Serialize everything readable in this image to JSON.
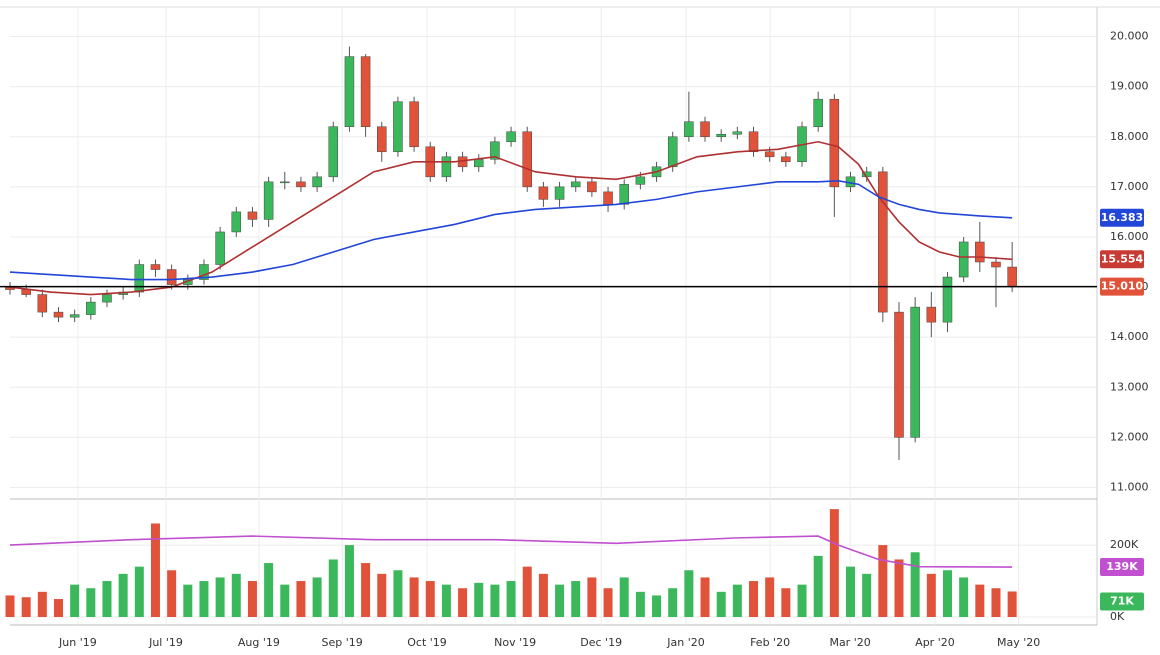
{
  "chart_data": {
    "type": "candlestick",
    "x": [
      0,
      4,
      8,
      12,
      16,
      20,
      24,
      28,
      32,
      36,
      40,
      44,
      48,
      52,
      56,
      60,
      64,
      68,
      72,
      76,
      80,
      84,
      88,
      92,
      96,
      100,
      104,
      108,
      112,
      116,
      120,
      124,
      128,
      132,
      136,
      140,
      144,
      148,
      152,
      156,
      160,
      164,
      168,
      172,
      176,
      180,
      184,
      188,
      192,
      196,
      200,
      204,
      208,
      212,
      216,
      220,
      224,
      228,
      232,
      236,
      240,
      244,
      248
    ],
    "open": [
      15.0,
      14.95,
      14.85,
      14.5,
      14.4,
      14.45,
      14.7,
      14.85,
      14.9,
      15.45,
      15.35,
      15.05,
      15.15,
      15.45,
      16.1,
      16.5,
      16.35,
      17.1,
      17.1,
      17.0,
      17.2,
      18.2,
      19.6,
      18.2,
      17.7,
      18.7,
      17.8,
      17.2,
      17.6,
      17.4,
      17.55,
      17.9,
      18.1,
      17.0,
      16.75,
      17.0,
      17.1,
      16.9,
      16.65,
      17.05,
      17.2,
      17.4,
      18.0,
      18.3,
      18.0,
      18.05,
      18.1,
      17.7,
      17.6,
      17.5,
      18.2,
      18.75,
      17.0,
      17.2,
      17.3,
      14.5,
      12.0,
      14.6,
      14.3,
      15.2,
      15.9,
      15.5,
      15.4
    ],
    "high": [
      15.1,
      15.05,
      14.95,
      14.6,
      14.55,
      14.8,
      14.95,
      15.0,
      15.55,
      15.55,
      15.45,
      15.25,
      15.55,
      16.2,
      16.6,
      16.6,
      17.2,
      17.3,
      17.2,
      17.3,
      18.3,
      19.8,
      19.65,
      18.3,
      18.8,
      18.8,
      17.9,
      17.7,
      17.7,
      17.65,
      18.0,
      18.2,
      18.2,
      17.1,
      17.1,
      17.2,
      17.2,
      17.0,
      17.15,
      17.3,
      17.5,
      18.1,
      18.9,
      18.4,
      18.15,
      18.2,
      18.2,
      17.8,
      17.7,
      18.3,
      18.9,
      18.85,
      17.3,
      17.4,
      17.4,
      14.7,
      14.8,
      14.9,
      15.3,
      16.0,
      16.3,
      15.6,
      15.9
    ],
    "low": [
      14.85,
      14.8,
      14.4,
      14.3,
      14.3,
      14.35,
      14.6,
      14.75,
      14.8,
      15.2,
      14.95,
      14.95,
      15.05,
      15.35,
      16.0,
      16.2,
      16.2,
      16.95,
      16.9,
      16.9,
      17.1,
      18.1,
      18.0,
      17.5,
      17.6,
      17.7,
      17.1,
      17.1,
      17.3,
      17.3,
      17.45,
      17.8,
      16.9,
      16.6,
      16.6,
      16.9,
      16.8,
      16.5,
      16.55,
      16.95,
      17.1,
      17.3,
      17.9,
      17.9,
      17.9,
      17.95,
      17.6,
      17.5,
      17.4,
      17.4,
      18.1,
      16.4,
      16.9,
      17.1,
      14.3,
      11.55,
      11.9,
      14.0,
      14.1,
      15.1,
      15.3,
      14.6,
      14.9
    ],
    "close": [
      14.95,
      14.85,
      14.5,
      14.4,
      14.45,
      14.7,
      14.85,
      14.9,
      15.45,
      15.35,
      15.05,
      15.15,
      15.45,
      16.1,
      16.5,
      16.35,
      17.1,
      17.1,
      17.0,
      17.2,
      18.2,
      19.6,
      18.2,
      17.7,
      18.7,
      17.8,
      17.2,
      17.6,
      17.4,
      17.55,
      17.9,
      18.1,
      17.0,
      16.75,
      17.0,
      17.1,
      16.9,
      16.65,
      17.05,
      17.2,
      17.4,
      18.0,
      18.3,
      18.0,
      18.05,
      18.1,
      17.7,
      17.6,
      17.5,
      18.2,
      18.75,
      17.0,
      17.2,
      17.3,
      14.5,
      12.0,
      14.6,
      14.3,
      15.2,
      15.9,
      15.5,
      15.4,
      15.01
    ],
    "volume": [
      60000,
      55000,
      70000,
      50000,
      90000,
      80000,
      100000,
      120000,
      140000,
      260000,
      130000,
      90000,
      100000,
      110000,
      120000,
      100000,
      150000,
      90000,
      100000,
      110000,
      160000,
      200000,
      150000,
      120000,
      130000,
      110000,
      100000,
      90000,
      80000,
      95000,
      90000,
      100000,
      140000,
      120000,
      90000,
      100000,
      110000,
      80000,
      110000,
      70000,
      60000,
      80000,
      130000,
      110000,
      70000,
      90000,
      100000,
      110000,
      80000,
      90000,
      170000,
      300000,
      140000,
      120000,
      200000,
      160000,
      180000,
      120000,
      130000,
      110000,
      90000,
      80000,
      71000
    ],
    "up_color": "#3cb85c",
    "down_color": "#e0533a",
    "lines": [
      {
        "color": "#b03030",
        "x": [
          0,
          10,
          20,
          30,
          40,
          50,
          60,
          70,
          80,
          90,
          100,
          110,
          120,
          130,
          140,
          150,
          160,
          170,
          180,
          190,
          200,
          205,
          210,
          215,
          220,
          225,
          230,
          235,
          240,
          248
        ],
        "values": [
          15.0,
          14.9,
          14.85,
          14.9,
          15.0,
          15.3,
          15.8,
          16.3,
          16.8,
          17.3,
          17.5,
          17.5,
          17.6,
          17.3,
          17.2,
          17.15,
          17.3,
          17.6,
          17.7,
          17.75,
          17.9,
          17.8,
          17.45,
          16.8,
          16.3,
          15.9,
          15.7,
          15.6,
          15.6,
          15.554
        ]
      },
      {
        "color": "#2246d8",
        "x": [
          0,
          10,
          20,
          30,
          40,
          50,
          60,
          70,
          80,
          90,
          100,
          110,
          120,
          130,
          140,
          150,
          160,
          170,
          180,
          190,
          200,
          205,
          210,
          215,
          220,
          225,
          230,
          235,
          240,
          248
        ],
        "values": [
          15.3,
          15.25,
          15.2,
          15.15,
          15.15,
          15.2,
          15.3,
          15.45,
          15.7,
          15.95,
          16.1,
          16.25,
          16.45,
          16.55,
          16.6,
          16.65,
          16.75,
          16.9,
          17.0,
          17.1,
          17.1,
          17.12,
          17.05,
          16.8,
          16.65,
          16.55,
          16.48,
          16.45,
          16.42,
          16.383
        ]
      }
    ],
    "volume_line": {
      "color": "#c050d0",
      "x": [
        0,
        30,
        60,
        90,
        120,
        150,
        180,
        200,
        205,
        215,
        225,
        248
      ],
      "values": [
        200000,
        215000,
        225000,
        215000,
        215000,
        205000,
        220000,
        225000,
        200000,
        160000,
        140000,
        139000
      ]
    },
    "price_labels": [
      {
        "value": 16.383,
        "label": "16.383",
        "color": "#2246d8"
      },
      {
        "value": 15.554,
        "label": "15.554",
        "color": "#c83a34"
      },
      {
        "value": 15.01,
        "label": "15.010",
        "color": "#e0533a"
      }
    ],
    "volume_labels": [
      {
        "value": 139000,
        "label": "139K",
        "color": "#c050d0"
      },
      {
        "value": 71000,
        "label": "71K",
        "color": "#3cb85c"
      }
    ],
    "xlim": [
      0,
      269
    ],
    "xticks": [
      {
        "value": 16.8,
        "label": "Jun '19"
      },
      {
        "value": 38.6,
        "label": "Jul '19"
      },
      {
        "value": 61.6,
        "label": "Aug '19"
      },
      {
        "value": 82.2,
        "label": "Sep '19"
      },
      {
        "value": 103.2,
        "label": "Oct '19"
      },
      {
        "value": 125,
        "label": "Nov '19"
      },
      {
        "value": 146.3,
        "label": "Dec '19"
      },
      {
        "value": 167.3,
        "label": "Jan '20"
      },
      {
        "value": 188.1,
        "label": "Feb '20"
      },
      {
        "value": 207.9,
        "label": "Mar '20"
      },
      {
        "value": 228.9,
        "label": "Apr '20"
      },
      {
        "value": 249.6,
        "label": "May '20"
      }
    ],
    "ylim": [
      10.77,
      20.57
    ],
    "yticks": [
      {
        "value": 11,
        "label": "11.000"
      },
      {
        "value": 12,
        "label": "12.000"
      },
      {
        "value": 13,
        "label": "13.000"
      },
      {
        "value": 14,
        "label": "14.000"
      },
      {
        "value": 15,
        "label": "15.000"
      },
      {
        "value": 16,
        "label": "16.000"
      },
      {
        "value": 17,
        "label": "17.000"
      },
      {
        "value": 18,
        "label": "18.000"
      },
      {
        "value": 19,
        "label": "19.000"
      },
      {
        "value": 20,
        "label": "20.000"
      }
    ],
    "y2lim": [
      0,
      317000
    ],
    "y2ticks": [
      {
        "value": 0,
        "label": "0K"
      },
      {
        "value": 200000,
        "label": "200K"
      }
    ],
    "grid": true
  }
}
